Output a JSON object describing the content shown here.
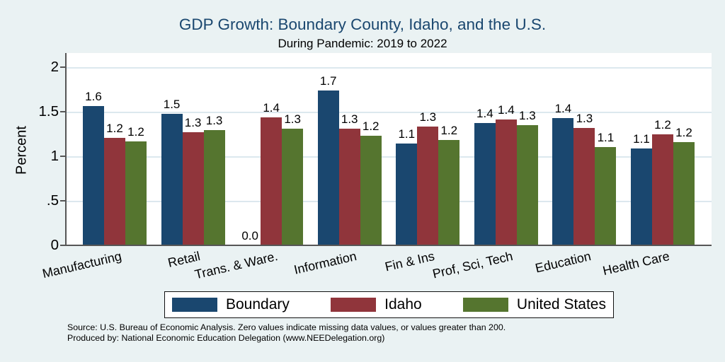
{
  "title": "GDP Growth: Boundary County, Idaho, and the U.S.",
  "subtitle": "During Pandemic: 2019 to 2022",
  "ylabel": "Percent",
  "notes": {
    "source": "Source: U.S. Bureau of Economic Analysis. Zero values indicate missing data values, or values greater than 200.",
    "produced_by": "Produced by: National Economic Education Delegation (www.NEEDelegation.org)"
  },
  "colors": {
    "background": "#eaf2f3",
    "title_text": "#1a476f",
    "boundary_blue": "#1a476f",
    "idaho_maroon": "#90353b",
    "us_green": "#55752f",
    "axis": "#565656",
    "gridline": "#dce8ee"
  },
  "chart_data": {
    "type": "bar",
    "title": "GDP Growth: Boundary County, Idaho, and the U.S.",
    "subtitle": "During Pandemic: 2019 to 2022",
    "xlabel": "",
    "ylabel": "Percent",
    "grid": true,
    "legend_position": "bottom",
    "ylim": [
      0,
      2.16
    ],
    "yticks": [
      {
        "value": 0,
        "label": "0"
      },
      {
        "value": 0.5,
        "label": ".5"
      },
      {
        "value": 1,
        "label": "1"
      },
      {
        "value": 1.5,
        "label": "1.5"
      },
      {
        "value": 2,
        "label": "2"
      }
    ],
    "categories": [
      "Manufacturing",
      "Retail",
      "Trans. & Ware.",
      "Information",
      "Fin & Ins",
      "Prof, Sci, Tech",
      "Education",
      "Health Care"
    ],
    "series": [
      {
        "name": "Boundary",
        "color": "#1a476f",
        "values": [
          1.6,
          1.5,
          0.0,
          1.7,
          1.1,
          1.4,
          1.4,
          1.1
        ],
        "value_labels": [
          "1.6",
          "1.5",
          "0.0",
          "1.7",
          "1.1",
          "1.4",
          "1.4",
          "1.1"
        ],
        "drawn_heights": [
          1.56,
          1.48,
          0,
          1.74,
          1.14,
          1.37,
          1.43,
          1.09
        ]
      },
      {
        "name": "Idaho",
        "color": "#90353b",
        "values": [
          1.2,
          1.3,
          1.4,
          1.3,
          1.3,
          1.4,
          1.3,
          1.2
        ],
        "value_labels": [
          "1.2",
          "1.3",
          "1.4",
          "1.3",
          "1.3",
          "1.4",
          "1.3",
          "1.2"
        ],
        "drawn_heights": [
          1.21,
          1.27,
          1.44,
          1.31,
          1.33,
          1.41,
          1.32,
          1.25
        ]
      },
      {
        "name": "United States",
        "color": "#55752f",
        "values": [
          1.2,
          1.3,
          1.3,
          1.2,
          1.2,
          1.3,
          1.1,
          1.2
        ],
        "value_labels": [
          "1.2",
          "1.3",
          "1.3",
          "1.2",
          "1.2",
          "1.3",
          "1.1",
          "1.2"
        ],
        "drawn_heights": [
          1.17,
          1.29,
          1.31,
          1.23,
          1.18,
          1.35,
          1.1,
          1.16
        ]
      }
    ]
  }
}
